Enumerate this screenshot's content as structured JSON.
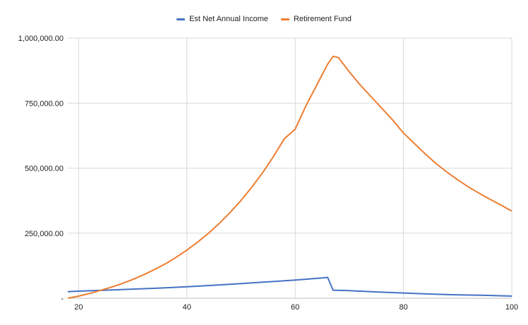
{
  "colors": {
    "income": "#4472C4",
    "fund": "#ED7D31",
    "grid": "#D9D9D9",
    "text": "#222222"
  },
  "chart_data": {
    "type": "line",
    "title": "",
    "xlabel": "",
    "ylabel": "",
    "xlim": [
      18,
      100
    ],
    "ylim": [
      0,
      1000000
    ],
    "grid": true,
    "legend_position": "top-center",
    "x_ticks": [
      20,
      40,
      60,
      80,
      100
    ],
    "y_ticks": [
      0,
      250000,
      500000,
      750000,
      1000000
    ],
    "y_tick_labels": [
      "-",
      "250,000.00",
      "500,000.00",
      "750,000.00",
      "1,000,000.00"
    ],
    "series": [
      {
        "name": "Est Net Annual Income",
        "color": "#4472C4",
        "points": [
          [
            18,
            25000
          ],
          [
            20,
            27000
          ],
          [
            25,
            31000
          ],
          [
            30,
            35000
          ],
          [
            35,
            39000
          ],
          [
            40,
            44000
          ],
          [
            45,
            50000
          ],
          [
            50,
            56000
          ],
          [
            55,
            63000
          ],
          [
            60,
            70000
          ],
          [
            65,
            78000
          ],
          [
            66,
            80000
          ],
          [
            67,
            31000
          ],
          [
            70,
            29000
          ],
          [
            75,
            24000
          ],
          [
            80,
            20000
          ],
          [
            85,
            16000
          ],
          [
            90,
            13000
          ],
          [
            95,
            11000
          ],
          [
            100,
            8000
          ]
        ]
      },
      {
        "name": "Retirement Fund",
        "color": "#ED7D31",
        "points": [
          [
            18,
            0
          ],
          [
            20,
            8000
          ],
          [
            22,
            18000
          ],
          [
            24,
            30000
          ],
          [
            26,
            42000
          ],
          [
            28,
            56000
          ],
          [
            30,
            72000
          ],
          [
            32,
            90000
          ],
          [
            34,
            110000
          ],
          [
            36,
            132000
          ],
          [
            38,
            157000
          ],
          [
            40,
            185000
          ],
          [
            42,
            216000
          ],
          [
            44,
            250000
          ],
          [
            46,
            288000
          ],
          [
            48,
            330000
          ],
          [
            50,
            376000
          ],
          [
            52,
            427000
          ],
          [
            54,
            483000
          ],
          [
            56,
            545000
          ],
          [
            58,
            613000
          ],
          [
            60,
            650000
          ],
          [
            62,
            740000
          ],
          [
            64,
            820000
          ],
          [
            66,
            900000
          ],
          [
            67,
            930000
          ],
          [
            68,
            925000
          ],
          [
            70,
            870000
          ],
          [
            72,
            820000
          ],
          [
            74,
            775000
          ],
          [
            76,
            730000
          ],
          [
            78,
            685000
          ],
          [
            80,
            635000
          ],
          [
            82,
            595000
          ],
          [
            84,
            555000
          ],
          [
            86,
            518000
          ],
          [
            88,
            485000
          ],
          [
            90,
            455000
          ],
          [
            92,
            428000
          ],
          [
            94,
            403000
          ],
          [
            96,
            380000
          ],
          [
            98,
            358000
          ],
          [
            100,
            335000
          ]
        ]
      }
    ]
  }
}
